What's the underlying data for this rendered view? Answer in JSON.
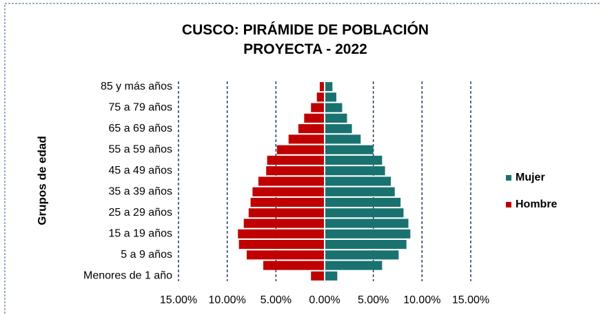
{
  "chart_data": {
    "type": "pyramid",
    "title": "CUSCO: PIRÁMIDE DE POBLACIÓN PROYECTA - 2022",
    "y_axis_label": "Grupos de edad",
    "categories": [
      "Menores de 1 año",
      null,
      "5 a 9 años",
      null,
      "15 a 19 años",
      null,
      "25 a 29 años",
      null,
      "35 a 39 años",
      null,
      "45 a 49 años",
      null,
      "55 a 59 años",
      null,
      "65 a 69 años",
      null,
      "75 a 79 años",
      null,
      "85 y más años"
    ],
    "series": [
      {
        "name": "Mujer",
        "color": "#1a7270",
        "values": [
          1.3,
          5.9,
          7.6,
          8.4,
          8.8,
          8.6,
          8.1,
          7.8,
          7.2,
          6.8,
          6.2,
          5.9,
          5.0,
          3.7,
          2.8,
          2.3,
          1.8,
          1.2,
          0.8
        ]
      },
      {
        "name": "Hombre",
        "color": "#c00000",
        "values": [
          -1.4,
          -6.3,
          -8.0,
          -8.8,
          -8.9,
          -8.3,
          -7.8,
          -7.6,
          -7.4,
          -6.8,
          -6.0,
          -5.9,
          -4.9,
          -3.7,
          -2.7,
          -2.1,
          -1.4,
          -0.8,
          -0.5
        ]
      }
    ],
    "xlim": [
      -15,
      15
    ],
    "xticks": [
      {
        "value": -15,
        "label": "15.00%"
      },
      {
        "value": -10,
        "label": "10.00%"
      },
      {
        "value": -5,
        "label": "5.00%"
      },
      {
        "value": 0,
        "label": "0.00%"
      },
      {
        "value": 5,
        "label": "5.00%"
      },
      {
        "value": 10,
        "label": "10.00%"
      },
      {
        "value": 15,
        "label": "15.00%"
      }
    ],
    "grid": true,
    "legend": "right"
  }
}
